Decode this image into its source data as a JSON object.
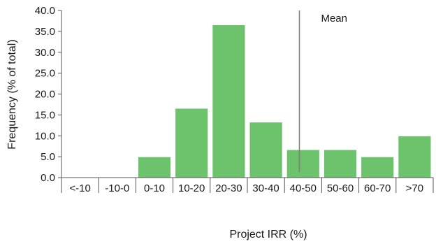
{
  "chart_data": {
    "type": "bar",
    "categories": [
      "<-10",
      "-10-0",
      "0-10",
      "10-20",
      "20-30",
      "30-40",
      "40-50",
      "50-60",
      "60-70",
      ">70"
    ],
    "values": [
      0,
      0,
      4.9,
      16.5,
      36.5,
      13.2,
      6.6,
      6.6,
      4.9,
      9.9
    ],
    "xlabel": "Project IRR (%)",
    "ylabel": "Frequency (% of total)",
    "ylim": [
      0,
      40
    ],
    "yticks": [
      "0.0",
      "5.0",
      "10.0",
      "15.0",
      "20.0",
      "25.0",
      "30.0",
      "35.0",
      "40.0"
    ],
    "bar_color": "#6cc36b",
    "grid": false,
    "mean_line": {
      "label": "Mean",
      "x_category_position": 6.4
    }
  }
}
